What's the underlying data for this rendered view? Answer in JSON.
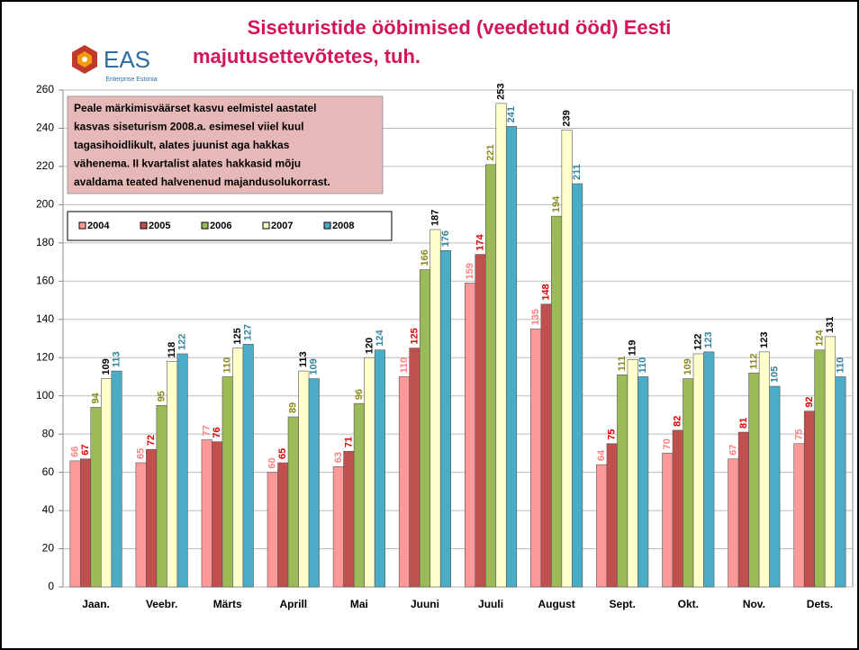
{
  "chart_data": {
    "type": "bar",
    "title": [
      "Siseturistide ööbimised (veedetud ööd) Eesti",
      "majutusettevõtetes, tuh."
    ],
    "logo": {
      "name": "EAS",
      "subtitle": "Enterprise Estonia"
    },
    "annotation": [
      "Peale märkimisväärset kasvu eelmistel aastatel",
      "kasvas siseturism 2008.a. esimesel viiel kuul",
      "tagasihoidlikult, alates juunist aga hakkas",
      "vähenema. II kvartalist alates hakkasid mõju",
      "avaldama teated halvenenud majandusolukorrast."
    ],
    "categories": [
      "Jaan.",
      "Veebr.",
      "Märts",
      "Aprill",
      "Mai",
      "Juuni",
      "Juuli",
      "August",
      "Sept.",
      "Okt.",
      "Nov.",
      "Dets."
    ],
    "series": [
      {
        "name": "2004",
        "color": "#ff9999",
        "label_color": "#ff8080",
        "values": [
          66,
          65,
          77,
          60,
          63,
          110,
          159,
          135,
          64,
          70,
          67,
          75
        ]
      },
      {
        "name": "2005",
        "color": "#c0504d",
        "label_color": "#e00000",
        "values": [
          67,
          72,
          76,
          65,
          71,
          125,
          174,
          148,
          75,
          82,
          81,
          92
        ]
      },
      {
        "name": "2006",
        "color": "#9bbb59",
        "label_color": "#8a8a1a",
        "values": [
          94,
          95,
          110,
          89,
          96,
          166,
          221,
          194,
          111,
          109,
          112,
          124
        ]
      },
      {
        "name": "2007",
        "color": "#ffffcc",
        "label_color": "#000000",
        "values": [
          109,
          118,
          125,
          113,
          120,
          187,
          253,
          239,
          119,
          122,
          123,
          131
        ]
      },
      {
        "name": "2008",
        "color": "#4bacc6",
        "label_color": "#31859c",
        "values": [
          113,
          122,
          127,
          109,
          124,
          176,
          241,
          211,
          110,
          123,
          105,
          110
        ]
      }
    ],
    "ylim": [
      0,
      260
    ],
    "yticks": [
      0,
      20,
      40,
      60,
      80,
      100,
      120,
      140,
      160,
      180,
      200,
      220,
      240,
      260
    ],
    "grid": true
  }
}
